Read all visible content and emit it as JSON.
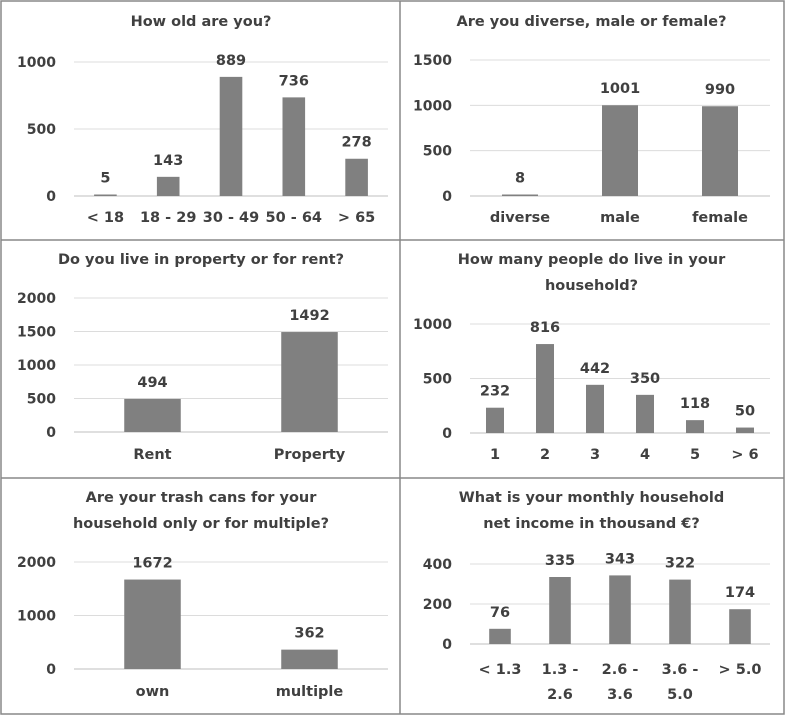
{
  "chart_data": [
    {
      "type": "bar",
      "title": [
        "How old are you?"
      ],
      "categories": [
        [
          "< 18"
        ],
        [
          "18 - 29"
        ],
        [
          "30 - 49"
        ],
        [
          "50 - 64"
        ],
        [
          "> 65"
        ]
      ],
      "values": [
        5,
        143,
        889,
        736,
        278
      ],
      "data_labels": [
        "5",
        "143",
        "889",
        "736",
        "278"
      ],
      "yticks": [
        "0",
        "500",
        "1000"
      ],
      "ylim": [
        0,
        1000
      ],
      "grid": true,
      "legend": "none",
      "color": "#808080"
    },
    {
      "type": "bar",
      "title": [
        "Are you diverse, male or female?"
      ],
      "categories": [
        [
          "diverse"
        ],
        [
          "male"
        ],
        [
          "female"
        ]
      ],
      "values": [
        8,
        1001,
        990
      ],
      "data_labels": [
        "8",
        "1001",
        "990"
      ],
      "yticks": [
        "0",
        "500",
        "1000",
        "1500"
      ],
      "ylim": [
        0,
        1500
      ],
      "grid": true,
      "legend": "none",
      "color": "#808080"
    },
    {
      "type": "bar",
      "title": [
        "Do you live in property or for rent?"
      ],
      "categories": [
        [
          "Rent"
        ],
        [
          "Property"
        ]
      ],
      "values": [
        494,
        1492
      ],
      "data_labels": [
        "494",
        "1492"
      ],
      "yticks": [
        "0",
        "500",
        "1000",
        "1500",
        "2000"
      ],
      "ylim": [
        0,
        2000
      ],
      "grid": true,
      "legend": "none",
      "color": "#808080"
    },
    {
      "type": "bar",
      "title": [
        "How many people do live in your",
        "household?"
      ],
      "categories": [
        [
          "1"
        ],
        [
          "2"
        ],
        [
          "3"
        ],
        [
          "4"
        ],
        [
          "5"
        ],
        [
          "> 6"
        ]
      ],
      "values": [
        232,
        816,
        442,
        350,
        118,
        50
      ],
      "data_labels": [
        "232",
        "816",
        "442",
        "350",
        "118",
        "50"
      ],
      "yticks": [
        "0",
        "500",
        "1000"
      ],
      "ylim": [
        0,
        1000
      ],
      "grid": true,
      "legend": "none",
      "color": "#808080"
    },
    {
      "type": "bar",
      "title": [
        "Are your trash cans for your",
        "household only or for multiple?"
      ],
      "categories": [
        [
          "own"
        ],
        [
          "multiple"
        ]
      ],
      "values": [
        1672,
        362
      ],
      "data_labels": [
        "1672",
        "362"
      ],
      "yticks": [
        "0",
        "1000",
        "2000"
      ],
      "ylim": [
        0,
        2000
      ],
      "grid": true,
      "legend": "none",
      "color": "#808080"
    },
    {
      "type": "bar",
      "title": [
        "What is your monthly household",
        "net income in thousand €?"
      ],
      "categories": [
        [
          "< 1.3"
        ],
        [
          "1.3 -",
          "2.6"
        ],
        [
          "2.6 -",
          "3.6"
        ],
        [
          "3.6 -",
          "5.0"
        ],
        [
          "> 5.0"
        ]
      ],
      "values": [
        76,
        335,
        343,
        322,
        174
      ],
      "data_labels": [
        "76",
        "335",
        "343",
        "322",
        "174"
      ],
      "yticks": [
        "0",
        "200",
        "400"
      ],
      "ylim": [
        0,
        400
      ],
      "grid": true,
      "legend": "none",
      "color": "#808080"
    }
  ]
}
